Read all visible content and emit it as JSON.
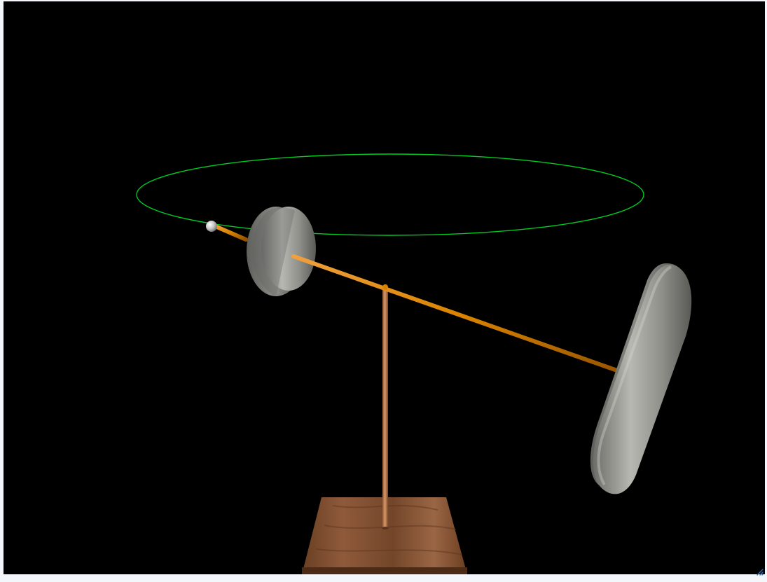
{
  "caption": {
    "text": ""
  },
  "scene": {
    "background": "#000000",
    "orbit_color": "#00cc22",
    "axle_color": "#d8860a",
    "post_color": "#c98a55",
    "disk_color": "#a7a7a2",
    "base_color": "#7b4c2d",
    "icon_names": [
      "resize-grip-icon"
    ]
  }
}
